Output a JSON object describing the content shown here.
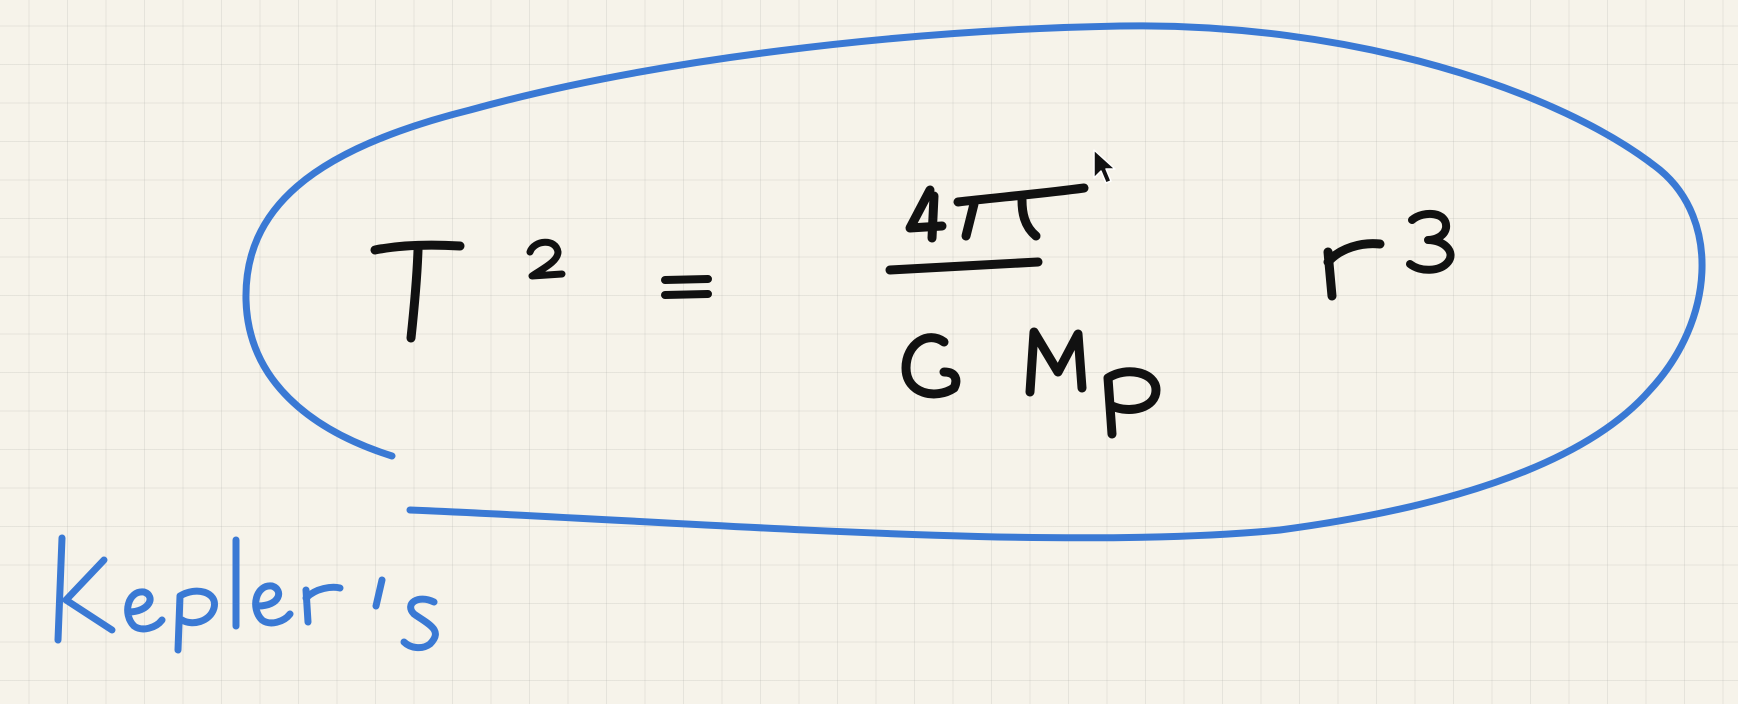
{
  "note": {
    "formula": {
      "lhs_symbol": "T",
      "lhs_exponent": "2",
      "equals": "=",
      "numerator": "4π",
      "denominator_g": "G",
      "denominator_m": "M",
      "denominator_sub": "p",
      "rhs_symbol": "r",
      "rhs_exponent": "3"
    },
    "annotation": "Kepler's"
  },
  "colors": {
    "paper": "#f6f3ea",
    "grid": "#d4d2cb",
    "ink_black": "#111111",
    "ink_blue": "#3a79d4"
  },
  "cursor_icon": "mouse-pointer-icon"
}
